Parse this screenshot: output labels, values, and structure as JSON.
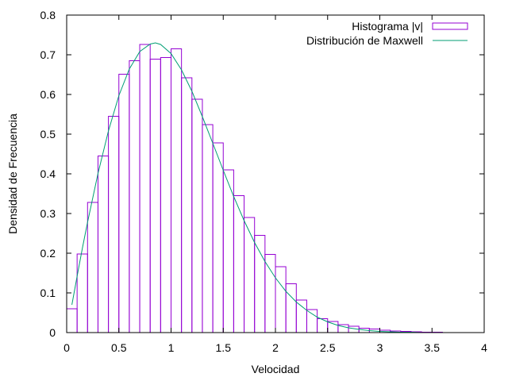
{
  "chart_data": {
    "type": "bar",
    "xlabel": "Velocidad",
    "ylabel": "Densidad de Frecuencia",
    "xlim": [
      0,
      4
    ],
    "ylim": [
      0,
      0.8
    ],
    "xticks": [
      "0",
      "0.5",
      "1",
      "1.5",
      "2",
      "2.5",
      "3",
      "3.5",
      "4"
    ],
    "yticks": [
      "0",
      "0.1",
      "0.2",
      "0.3",
      "0.4",
      "0.5",
      "0.6",
      "0.7",
      "0.8"
    ],
    "grid": false,
    "legend_position": "top-right",
    "series": [
      {
        "name": "Histograma |v|",
        "kind": "histogram",
        "color": "#9400d3",
        "bin_width": 0.1,
        "bins_start": [
          0.0,
          0.1,
          0.2,
          0.3,
          0.4,
          0.5,
          0.6,
          0.7,
          0.8,
          0.9,
          1.0,
          1.1,
          1.2,
          1.3,
          1.4,
          1.5,
          1.6,
          1.7,
          1.8,
          1.9,
          2.0,
          2.1,
          2.2,
          2.3,
          2.4,
          2.5,
          2.6,
          2.7,
          2.8,
          2.9,
          3.0,
          3.1,
          3.2,
          3.3,
          3.4,
          3.5,
          3.6,
          3.7,
          3.8,
          3.9
        ],
        "values": [
          0.06,
          0.198,
          0.328,
          0.445,
          0.545,
          0.651,
          0.685,
          0.726,
          0.689,
          0.693,
          0.715,
          0.642,
          0.588,
          0.524,
          0.478,
          0.41,
          0.345,
          0.29,
          0.245,
          0.197,
          0.166,
          0.123,
          0.082,
          0.058,
          0.035,
          0.028,
          0.02,
          0.016,
          0.011,
          0.009,
          0.006,
          0.004,
          0.003,
          0.002,
          0.001,
          0.001,
          0.0,
          0.0,
          0.0,
          0.0
        ]
      },
      {
        "name": "Distribución de Maxwell",
        "kind": "line",
        "color": "#009e73",
        "x": [
          0.05,
          0.1,
          0.15,
          0.2,
          0.3,
          0.4,
          0.5,
          0.6,
          0.7,
          0.8,
          0.85,
          0.9,
          1.0,
          1.1,
          1.2,
          1.3,
          1.4,
          1.5,
          1.6,
          1.7,
          1.8,
          1.9,
          2.0,
          2.1,
          2.2,
          2.3,
          2.4,
          2.5,
          2.6,
          2.7,
          2.8,
          2.9,
          3.0,
          3.1,
          3.2,
          3.3,
          3.4,
          3.5
        ],
        "y": [
          0.07,
          0.142,
          0.212,
          0.278,
          0.401,
          0.508,
          0.597,
          0.664,
          0.708,
          0.727,
          0.73,
          0.726,
          0.703,
          0.662,
          0.608,
          0.544,
          0.477,
          0.409,
          0.343,
          0.282,
          0.227,
          0.179,
          0.138,
          0.104,
          0.077,
          0.056,
          0.039,
          0.027,
          0.018,
          0.012,
          0.008,
          0.005,
          0.003,
          0.002,
          0.001,
          0.001,
          0.0,
          0.0
        ]
      }
    ]
  }
}
